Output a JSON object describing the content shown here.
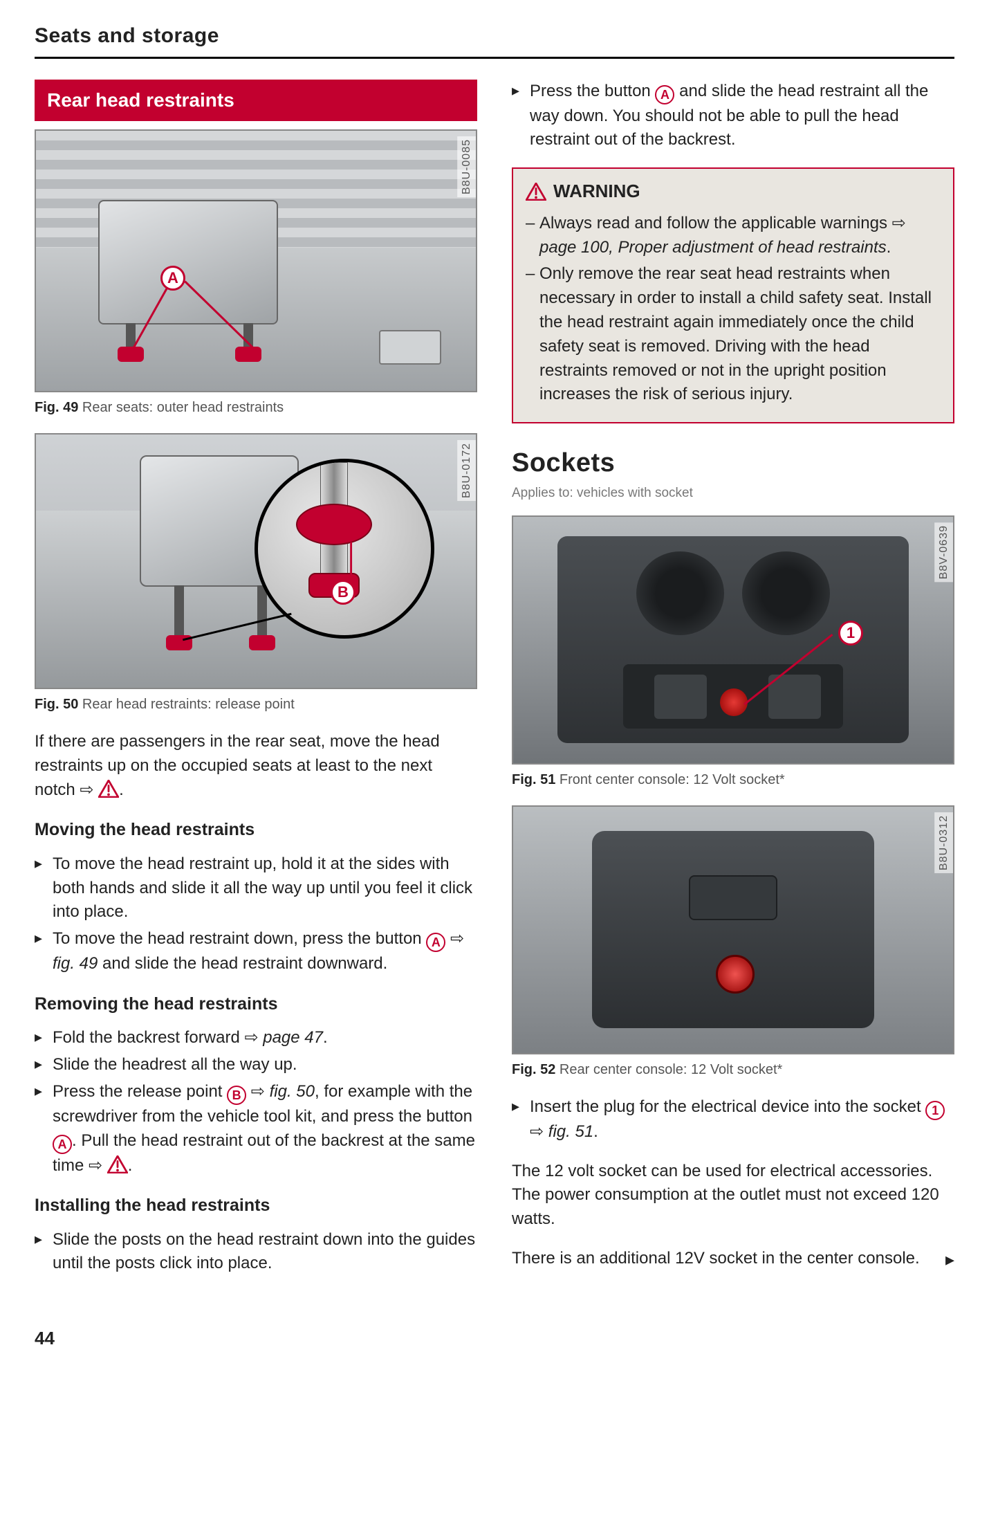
{
  "header": "Seats and storage",
  "pageNumber": "44",
  "left": {
    "banner": "Rear head restraints",
    "fig49": {
      "id": "B8U-0085",
      "captionBold": "Fig. 49",
      "caption": "Rear seats: outer head restraints",
      "callout": "A"
    },
    "fig50": {
      "id": "B8U-0172",
      "captionBold": "Fig. 50",
      "caption": "Rear head restraints: release point",
      "callout": "B"
    },
    "introPara": "If there are passengers in the rear seat, move the head restraints up on the occupied seats at least to the next notch ⇨ ",
    "sub1": "Moving the head restraints",
    "moveList": [
      "To move the head restraint up, hold it at the sides with both hands and slide it all the way up until you feel it click into place.",
      "To move the head restraint down, press the button {A} ⇨ fig. 49 and slide the head restraint downward."
    ],
    "sub2": "Removing the head restraints",
    "removeList": [
      "Fold the backrest forward ⇨ page 47.",
      "Slide the headrest all the way up.",
      "Press the release point {B} ⇨ fig. 50, for example with the screwdriver from the vehicle tool kit, and press the button {A}. Pull the head restraint out of the backrest at the same time ⇨ {!}."
    ],
    "sub3": "Installing the head restraints",
    "installList": [
      "Slide the posts on the head restraint down into the guides until the posts click into place."
    ]
  },
  "right": {
    "topList": [
      "Press the button {A} and slide the head restraint all the way down. You should not be able to pull the head restraint out of the backrest."
    ],
    "warning": {
      "title": "WARNING",
      "items": [
        "Always read and follow the applicable warnings ⇨ page 100, Proper adjustment of head restraints.",
        "Only remove the rear seat head restraints when necessary in order to install a child safety seat. Install the head restraint again immediately once the child safety seat is removed. Driving with the head restraints removed or not in the upright position increases the risk of serious injury."
      ]
    },
    "socketsHeading": "Sockets",
    "applies": "Applies to: vehicles with socket",
    "fig51": {
      "id": "B8V-0639",
      "captionBold": "Fig. 51",
      "caption": "Front center console: 12 Volt socket*",
      "callout": "1"
    },
    "fig52": {
      "id": "B8U-0312",
      "captionBold": "Fig. 52",
      "caption": "Rear center console: 12 Volt socket*"
    },
    "insertList": [
      "Insert the plug for the electrical device into the socket {1} ⇨ fig. 51."
    ],
    "paraA": "The 12 volt socket can be used for electrical accessories. The power consumption at the outlet must not exceed 120 watts.",
    "paraB": "There is an additional 12V socket in the center console."
  }
}
